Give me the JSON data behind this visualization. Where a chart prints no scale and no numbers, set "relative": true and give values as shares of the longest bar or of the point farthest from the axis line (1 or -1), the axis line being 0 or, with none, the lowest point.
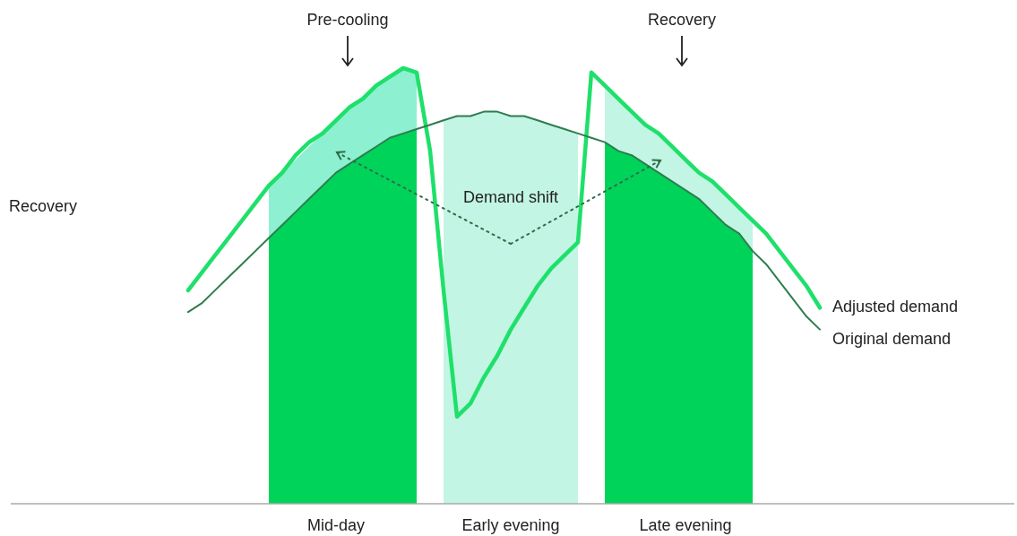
{
  "chart_data": {
    "type": "line",
    "relative": true,
    "categories": [
      null,
      null,
      null,
      null,
      null,
      null,
      null,
      null,
      null,
      null,
      null,
      "Mid-day",
      null,
      null,
      null,
      null,
      null,
      null,
      null,
      null,
      null,
      null,
      null,
      null,
      "Early evening",
      null,
      null,
      null,
      null,
      null,
      null,
      null,
      null,
      null,
      null,
      null,
      null,
      "Late evening",
      null,
      null,
      null,
      null,
      null,
      null,
      null,
      null,
      null,
      null
    ],
    "series": [
      {
        "type": "area",
        "color": "#8df0d0",
        "values": [
          null,
          null,
          null,
          null,
          null,
          null,
          0.73,
          null,
          null,
          null,
          null,
          0.88,
          0.91,
          0.93,
          0.96,
          0.98,
          1,
          0.99,
          null,
          null,
          null,
          null,
          null,
          null,
          null,
          null,
          null,
          null,
          null,
          null,
          null,
          null,
          null,
          null,
          null,
          null,
          null,
          null,
          null,
          null,
          null,
          null,
          null,
          null,
          null,
          null,
          null,
          null
        ]
      },
      {
        "type": "area",
        "color": "#00d35a",
        "values": [
          null,
          null,
          null,
          null,
          null,
          null,
          0.61,
          0.64,
          0.67,
          0.7,
          0.73,
          0.76,
          0.78,
          0.8,
          0.82,
          0.84,
          0.85,
          0.86,
          null,
          null,
          null,
          null,
          null,
          null,
          null,
          null,
          null,
          null,
          null,
          null,
          null,
          null,
          null,
          null,
          null,
          null,
          null,
          null,
          null,
          null,
          null,
          null,
          null,
          null,
          null,
          null,
          null,
          null
        ]
      },
      {
        "type": "area",
        "color": "#c2f5e3",
        "values": [
          null,
          null,
          null,
          null,
          null,
          null,
          null,
          null,
          null,
          null,
          null,
          null,
          null,
          null,
          null,
          null,
          null,
          null,
          null,
          0.88,
          0.89,
          0.89,
          0.9,
          0.9,
          0.89,
          0.89,
          0.88,
          0.87,
          0.86,
          0.85,
          null,
          null,
          null,
          null,
          null,
          null,
          null,
          null,
          null,
          null,
          null,
          null,
          null,
          null,
          null,
          null,
          null,
          null
        ]
      },
      {
        "type": "area",
        "color": "#c2f5e3",
        "values": [
          null,
          null,
          null,
          null,
          null,
          null,
          null,
          null,
          null,
          null,
          null,
          null,
          null,
          null,
          null,
          null,
          null,
          null,
          null,
          null,
          null,
          null,
          null,
          null,
          null,
          null,
          null,
          null,
          null,
          null,
          null,
          0.96,
          0.93,
          0.9,
          0.87,
          0.85,
          null,
          null,
          null,
          null,
          null,
          null,
          0.65,
          null,
          null,
          null,
          null,
          null
        ]
      },
      {
        "type": "area",
        "color": "#00d35a",
        "values": [
          null,
          null,
          null,
          null,
          null,
          null,
          null,
          null,
          null,
          null,
          null,
          null,
          null,
          null,
          null,
          null,
          null,
          null,
          null,
          null,
          null,
          null,
          null,
          null,
          null,
          null,
          null,
          null,
          null,
          null,
          null,
          0.83,
          0.81,
          0.8,
          0.78,
          0.76,
          0.74,
          0.72,
          0.7,
          0.67,
          0.64,
          0.62,
          0.58,
          null,
          null,
          null,
          null,
          null
        ]
      },
      {
        "name": "Adjusted demand",
        "color": "#1ee06a",
        "values": [
          0.49,
          0.53,
          0.57,
          0.61,
          0.65,
          0.69,
          0.73,
          0.76,
          0.8,
          0.83,
          0.85,
          0.88,
          0.91,
          0.93,
          0.96,
          0.98,
          1,
          0.99,
          0.81,
          0.49,
          0.2,
          0.23,
          0.29,
          0.34,
          0.4,
          0.45,
          0.5,
          0.54,
          0.57,
          0.6,
          0.99,
          0.96,
          0.93,
          0.9,
          0.87,
          0.85,
          0.82,
          0.79,
          0.76,
          0.74,
          0.71,
          0.68,
          0.65,
          0.62,
          0.58,
          0.54,
          0.5,
          0.45
        ]
      },
      {
        "name": "Original demand",
        "color": "#2e7d4f",
        "values": [
          0.44,
          0.46,
          0.49,
          0.52,
          0.55,
          0.58,
          0.61,
          0.64,
          0.67,
          0.7,
          0.73,
          0.76,
          0.78,
          0.8,
          0.82,
          0.84,
          0.85,
          0.86,
          0.87,
          0.88,
          0.89,
          0.89,
          0.9,
          0.9,
          0.89,
          0.89,
          0.88,
          0.87,
          0.86,
          0.85,
          0.84,
          0.83,
          0.81,
          0.8,
          0.78,
          0.76,
          0.74,
          0.72,
          0.7,
          0.67,
          0.64,
          0.62,
          0.58,
          0.55,
          0.51,
          0.47,
          0.43,
          0.4
        ]
      }
    ],
    "annotations": [
      "Pre-cooling",
      "Recovery",
      "Recovery",
      "Demand shift"
    ]
  }
}
